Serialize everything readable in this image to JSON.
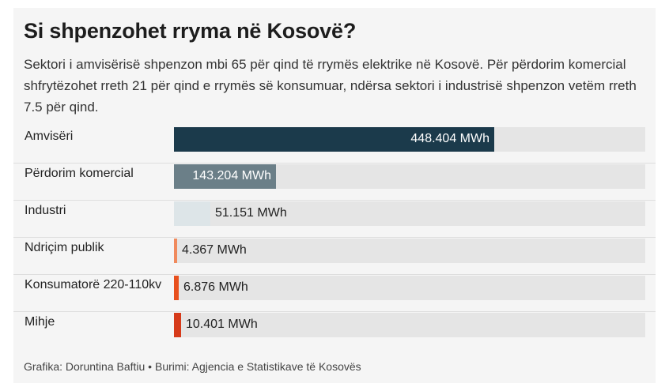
{
  "header": {
    "title": "Si shpenzohet rryma në Kosovë?",
    "subtitle": "Sektori i amvisërisë shpenzon mbi 65 për qind të rrymës elektrike në Kosovë. Për përdorim komercial shfrytëzohet rreth 21 për qind e rrymës së konsumuar, ndërsa sektori i industrisë shpenzon vetëm rreth 7.5 për qind."
  },
  "chart_data": {
    "type": "bar",
    "orientation": "horizontal",
    "unit": "MWh",
    "xlim": [
      0,
      660
    ],
    "categories": [
      "Amvisëri",
      "Përdorim komercial",
      "Industri",
      "Ndriçim publik",
      "Konsumatorë 220-110kv",
      "Mihje"
    ],
    "values": [
      448.404,
      143.204,
      51.151,
      4.367,
      6.876,
      10.401
    ],
    "value_labels": [
      "448.404 MWh",
      "143.204 MWh",
      "51.151 MWh",
      "4.367 MWh",
      "6.876 MWh",
      "10.401 MWh"
    ],
    "colors": [
      "#1b3a4b",
      "#6b7f88",
      "#dde5e8",
      "#f08a5d",
      "#e8501e",
      "#d63a1a"
    ],
    "label_inside": [
      true,
      true,
      false,
      false,
      false,
      false
    ]
  },
  "footer": {
    "credit": "Grafika: Doruntina Baftiu • Burimi: Agjencia e Statistikave të Kosovës"
  }
}
